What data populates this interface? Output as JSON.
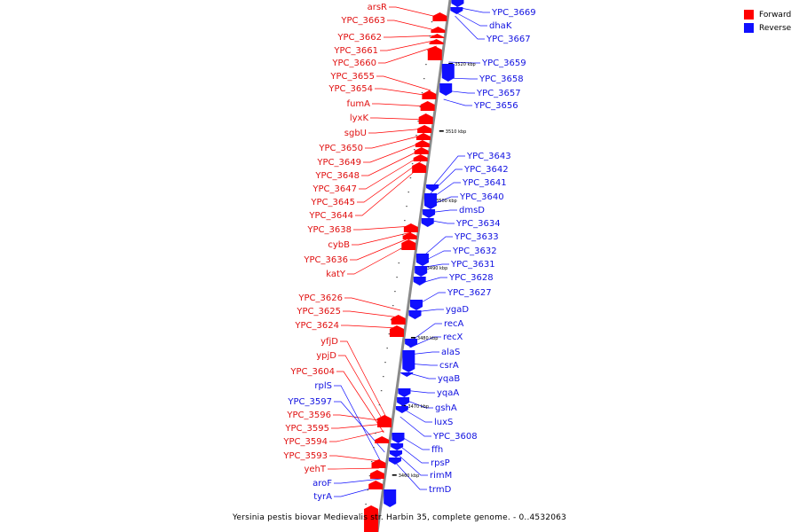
{
  "legend": {
    "forward": {
      "label": "Forward",
      "color": "#ff0000"
    },
    "reverse": {
      "label": "Reverse",
      "color": "#1010ff"
    }
  },
  "caption": "Yersinia pestis biovar Medievalis str. Harbin 35, complete genome. - 0..4532063",
  "ticks": [
    "3520 kbp",
    "3510 kbp",
    "3500 kbp",
    "3490 kbp",
    "3480 kbp",
    "3470 kbp",
    "3460 kbp"
  ],
  "forward_genes": [
    "arsR",
    "YPC_3663",
    "YPC_3662",
    "YPC_3661",
    "YPC_3660",
    "YPC_3655",
    "YPC_3654",
    "fumA",
    "lyxK",
    "sgbU",
    "YPC_3650",
    "YPC_3649",
    "YPC_3648",
    "YPC_3647",
    "YPC_3645",
    "YPC_3644",
    "YPC_3638",
    "cybB",
    "YPC_3636",
    "katY",
    "YPC_3626",
    "YPC_3625",
    "YPC_3624",
    "yfjD",
    "ypjD",
    "YPC_3604",
    "YPC_3596",
    "YPC_3595",
    "YPC_3594",
    "YPC_3593",
    "yehT"
  ],
  "reverse_genes": [
    "YPC_3669",
    "dhaK",
    "YPC_3667",
    "YPC_3659",
    "YPC_3658",
    "YPC_3657",
    "YPC_3656",
    "YPC_3643",
    "YPC_3642",
    "YPC_3641",
    "YPC_3640",
    "dmsD",
    "YPC_3634",
    "YPC_3633",
    "YPC_3632",
    "YPC_3631",
    "YPC_3628",
    "YPC_3627",
    "ygaD",
    "recA",
    "recX",
    "alaS",
    "csrA",
    "yqaB",
    "yqaA",
    "gshA",
    "luxS",
    "YPC_3608",
    "ffh",
    "rpsP",
    "rimM",
    "trmD",
    "rplS",
    "YPC_3597",
    "aroF",
    "tyrA"
  ]
}
